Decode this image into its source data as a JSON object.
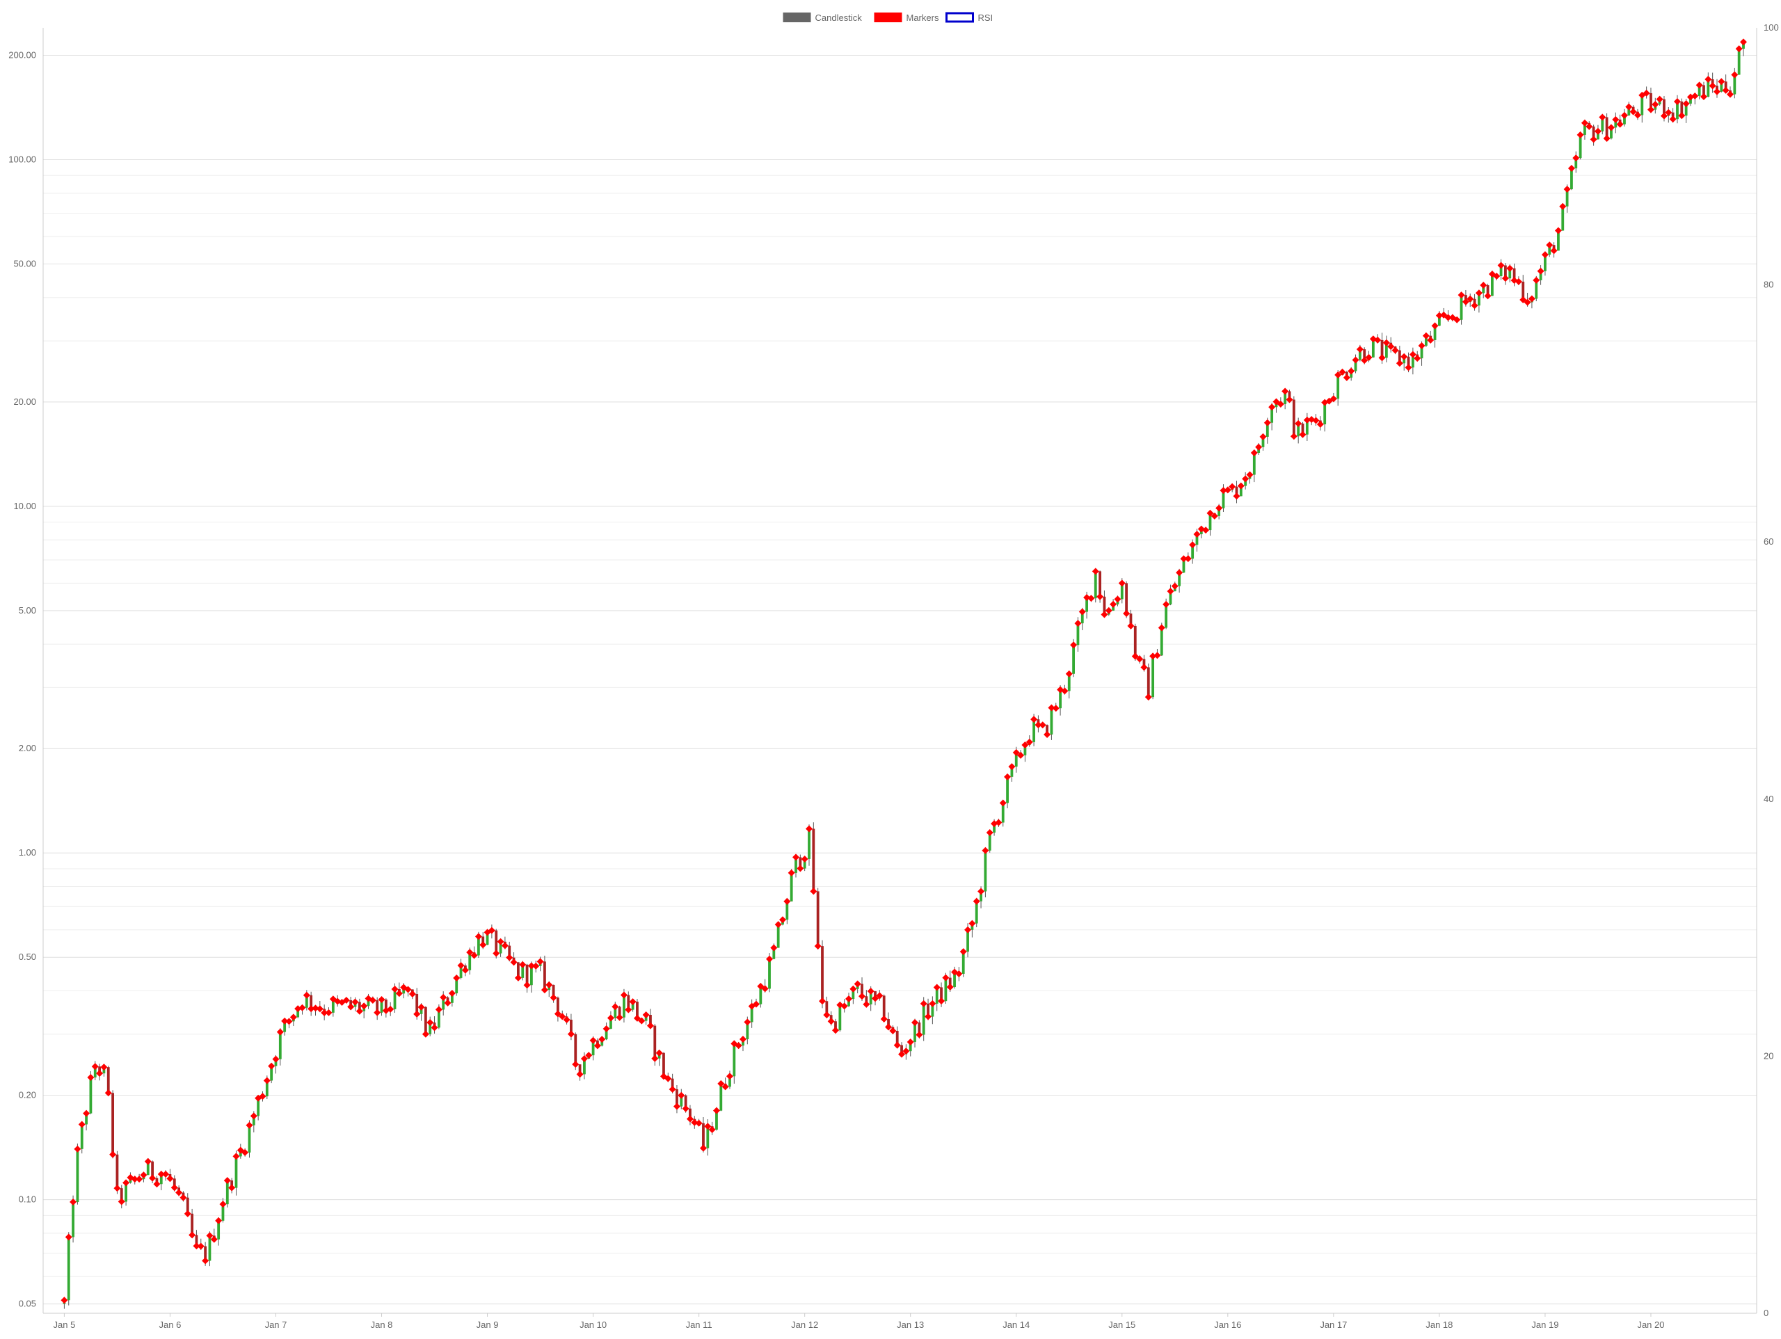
{
  "chart_data": {
    "type": "candlestick",
    "title": "",
    "legend": {
      "placement": "top-center",
      "items": [
        {
          "label": "Candlestick",
          "color": "#666666",
          "style": "filled"
        },
        {
          "label": "Markers",
          "color": "#ff0000",
          "style": "filled"
        },
        {
          "label": "RSI",
          "color": "#0000cc",
          "style": "outline"
        }
      ]
    },
    "y_axis_left": {
      "scale": "log",
      "range": [
        0.047,
        240
      ],
      "tick_values": [
        0.05,
        0.1,
        0.2,
        0.5,
        1,
        2,
        5,
        10,
        20,
        50,
        100,
        200
      ],
      "tick_labels": [
        "0.05",
        "0.10",
        "0.20",
        "0.50",
        "1.00",
        "2.00",
        "5.00",
        "10.00",
        "20.00",
        "50.00",
        "100.00",
        "200.00"
      ],
      "minor_gridlines": true
    },
    "y_axis_right": {
      "scale": "linear",
      "range": [
        0,
        100
      ],
      "tick_values": [
        0,
        20,
        40,
        60,
        80,
        100
      ],
      "tick_labels": [
        "0",
        "20",
        "40",
        "60",
        "80",
        "100"
      ]
    },
    "x_axis": {
      "range": [
        4.8,
        21.0
      ],
      "tick_values": [
        5,
        6,
        7,
        8,
        9,
        10,
        11,
        12,
        13,
        14,
        15,
        16,
        17,
        18,
        19,
        20
      ],
      "tick_labels": [
        "Jan 5",
        "Jan 6",
        "Jan 7",
        "Jan 8",
        "Jan 9",
        "Jan 10",
        "Jan 11",
        "Jan 12",
        "Jan 13",
        "Jan 14",
        "Jan 15",
        "Jan 16",
        "Jan 17",
        "Jan 18",
        "Jan 19",
        "Jan 20"
      ]
    },
    "grid": true,
    "colors": {
      "up": "#33aa33",
      "down": "#aa2222",
      "wick": "#555555",
      "marker": "#ff0000"
    },
    "series": [
      {
        "name": "Candlestick",
        "type": "ohlc",
        "points_per_day": 24,
        "x_start": 5.0,
        "anchors": [
          [
            5.0,
            0.05
          ],
          [
            5.1,
            0.12
          ],
          [
            5.2,
            0.18
          ],
          [
            5.3,
            0.25
          ],
          [
            5.4,
            0.22
          ],
          [
            5.5,
            0.1
          ],
          [
            5.75,
            0.12
          ],
          [
            5.95,
            0.12
          ],
          [
            6.1,
            0.1
          ],
          [
            6.25,
            0.07
          ],
          [
            6.35,
            0.07
          ],
          [
            6.5,
            0.1
          ],
          [
            6.75,
            0.16
          ],
          [
            7.05,
            0.3
          ],
          [
            7.25,
            0.38
          ],
          [
            7.45,
            0.36
          ],
          [
            7.75,
            0.36
          ],
          [
            8.0,
            0.35
          ],
          [
            8.25,
            0.4
          ],
          [
            8.45,
            0.3
          ],
          [
            8.65,
            0.4
          ],
          [
            8.8,
            0.5
          ],
          [
            8.95,
            0.58
          ],
          [
            9.05,
            0.55
          ],
          [
            9.3,
            0.45
          ],
          [
            9.5,
            0.45
          ],
          [
            9.7,
            0.35
          ],
          [
            9.85,
            0.24
          ],
          [
            10.05,
            0.3
          ],
          [
            10.3,
            0.38
          ],
          [
            10.5,
            0.32
          ],
          [
            10.7,
            0.22
          ],
          [
            10.95,
            0.17
          ],
          [
            11.05,
            0.14
          ],
          [
            11.15,
            0.18
          ],
          [
            11.3,
            0.25
          ],
          [
            11.5,
            0.35
          ],
          [
            11.7,
            0.5
          ],
          [
            11.9,
            0.9
          ],
          [
            12.05,
            1.1
          ],
          [
            12.15,
            0.4
          ],
          [
            12.25,
            0.32
          ],
          [
            12.5,
            0.4
          ],
          [
            12.75,
            0.35
          ],
          [
            12.9,
            0.26
          ],
          [
            13.15,
            0.35
          ],
          [
            13.3,
            0.4
          ],
          [
            13.45,
            0.45
          ],
          [
            13.6,
            0.65
          ],
          [
            13.75,
            1.1
          ],
          [
            13.9,
            1.5
          ],
          [
            14.05,
            2.0
          ],
          [
            14.15,
            2.3
          ],
          [
            14.25,
            2.2
          ],
          [
            14.45,
            3.0
          ],
          [
            14.6,
            4.5
          ],
          [
            14.75,
            6.5
          ],
          [
            14.85,
            4.8
          ],
          [
            15.0,
            6.0
          ],
          [
            15.15,
            3.5
          ],
          [
            15.25,
            3.0
          ],
          [
            15.4,
            5.0
          ],
          [
            15.6,
            7.0
          ],
          [
            15.9,
            10.5
          ],
          [
            16.05,
            11.0
          ],
          [
            16.25,
            13.5
          ],
          [
            16.4,
            20.0
          ],
          [
            16.55,
            21.0
          ],
          [
            16.65,
            16.0
          ],
          [
            16.85,
            18.0
          ],
          [
            17.0,
            22.0
          ],
          [
            17.2,
            27.0
          ],
          [
            17.35,
            29.0
          ],
          [
            17.55,
            27.0
          ],
          [
            17.75,
            26.5
          ],
          [
            18.0,
            33.0
          ],
          [
            18.3,
            40.0
          ],
          [
            18.65,
            48.0
          ],
          [
            18.85,
            40.0
          ],
          [
            19.05,
            55.0
          ],
          [
            19.15,
            65.0
          ],
          [
            19.35,
            120.0
          ],
          [
            19.6,
            125.0
          ],
          [
            19.95,
            145.0
          ],
          [
            20.25,
            140.0
          ],
          [
            20.5,
            160.0
          ],
          [
            20.75,
            165.0
          ],
          [
            20.9,
            230.0
          ]
        ]
      }
    ]
  }
}
